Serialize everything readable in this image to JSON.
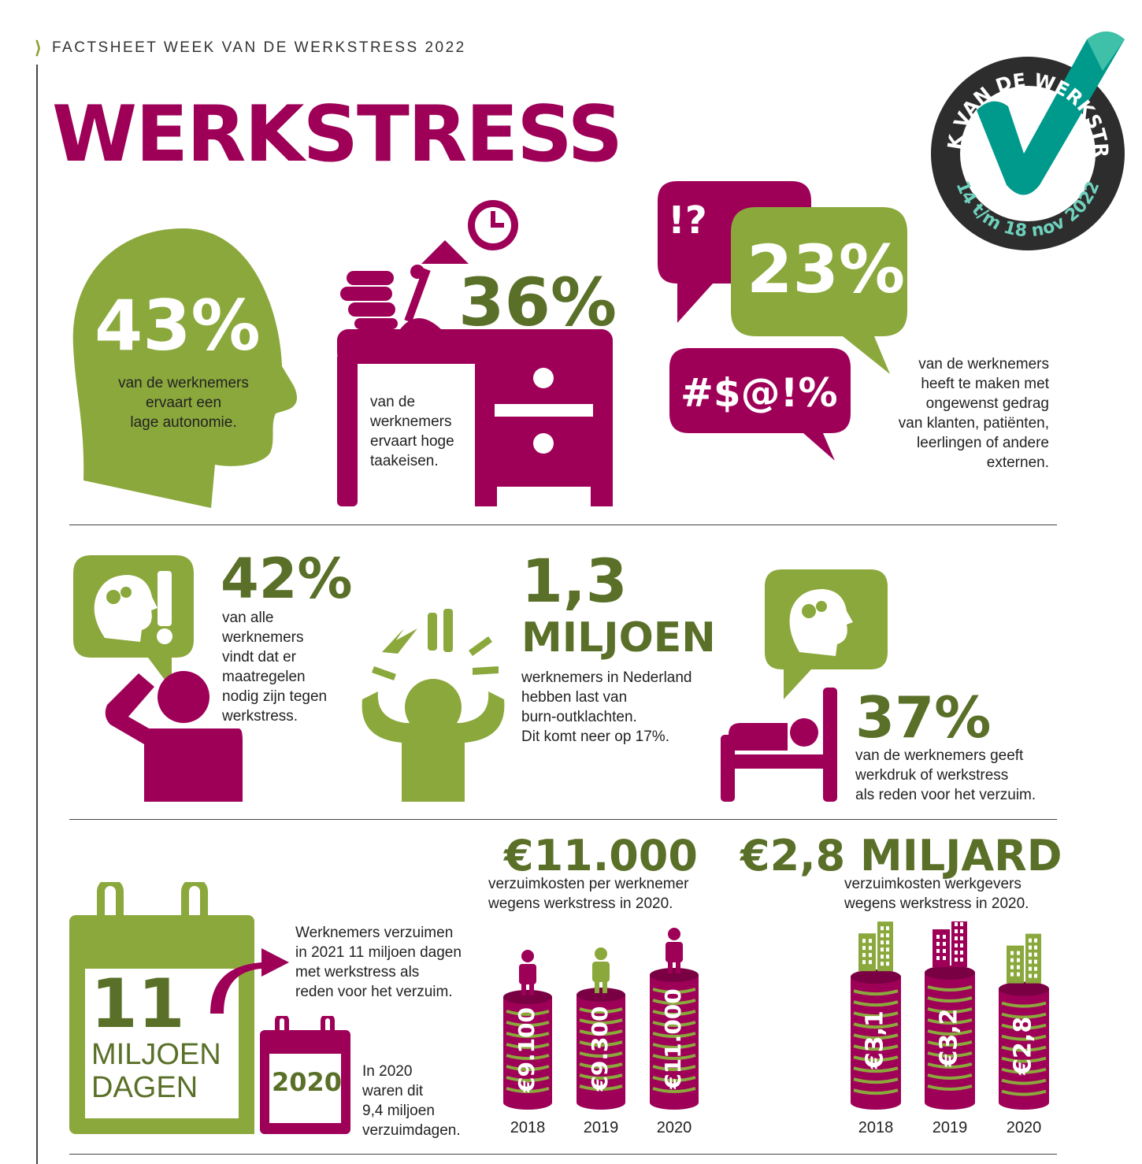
{
  "header": {
    "mark": "⟩",
    "title": "FACTSHEET WEEK VAN DE WERKSTRESS 2022"
  },
  "page_title": "WERKSTRESS",
  "badge": {
    "top": "WEEK VAN DE WERKSTRESS",
    "bottom": "14 t/m 18 nov 2022"
  },
  "stats": {
    "autonomy": {
      "value": "43%",
      "text": [
        "van de werknemers",
        "ervaart een",
        "lage autonomie."
      ]
    },
    "demands": {
      "value": "36%",
      "text": [
        "van de",
        "werknemers",
        "ervaart hoge",
        "taakeisen."
      ]
    },
    "behaviour": {
      "value": "23%",
      "symbols1": "!?",
      "symbols2": "#$@!%",
      "text": [
        "van de werknemers",
        "heeft te maken met",
        "ongewenst gedrag",
        "van klanten, patiënten,",
        "leerlingen of andere",
        "externen."
      ]
    },
    "measures": {
      "value": "42%",
      "text": [
        "van alle",
        "werknemers",
        "vindt dat er",
        "maatregelen",
        "nodig zijn tegen",
        "werkstress."
      ]
    },
    "burnout": {
      "value": "1,3",
      "unit": "MILJOEN",
      "text": [
        "werknemers in Nederland",
        "hebben last van",
        "burn-outklachten.",
        "Dit komt neer op 17%."
      ]
    },
    "absence_reason": {
      "value": "37%",
      "text": [
        "van de werknemers geeft",
        "werkdruk of werkstress",
        "als reden voor het verzuim."
      ]
    }
  },
  "days": {
    "value": "11",
    "unit1": "MILJOEN",
    "unit2": "DAGEN",
    "text": [
      "Werknemers verzuimen",
      "in 2021 11 miljoen dagen",
      "met werkstress als",
      "reden voor het verzuim."
    ],
    "year": "2020",
    "text2020": [
      "In 2020",
      "waren dit",
      "9,4 miljoen",
      "verzuimdagen."
    ]
  },
  "cost_employee": {
    "value": "€11.000",
    "text": [
      "verzuimkosten per werknemer",
      "wegens werkstress in 2020."
    ],
    "bars": [
      {
        "year": "2018",
        "label": "€9.100",
        "value": 9100
      },
      {
        "year": "2019",
        "label": "€9.300",
        "value": 9300
      },
      {
        "year": "2020",
        "label": "€11.000",
        "value": 11000
      }
    ]
  },
  "cost_employer": {
    "value": "€2,8 MILJARD",
    "text": [
      "verzuimkosten werkgevers",
      "wegens werkstress in 2020."
    ],
    "bars": [
      {
        "year": "2018",
        "label": "€3,1",
        "value": 3.1
      },
      {
        "year": "2019",
        "label": "€3,2",
        "value": 3.2
      },
      {
        "year": "2020",
        "label": "€2,8",
        "value": 2.8
      }
    ]
  },
  "colors": {
    "magenta": "#9e0058",
    "green": "#8ba83c",
    "dark_green": "#5a7028",
    "teal": "#009a8c"
  }
}
